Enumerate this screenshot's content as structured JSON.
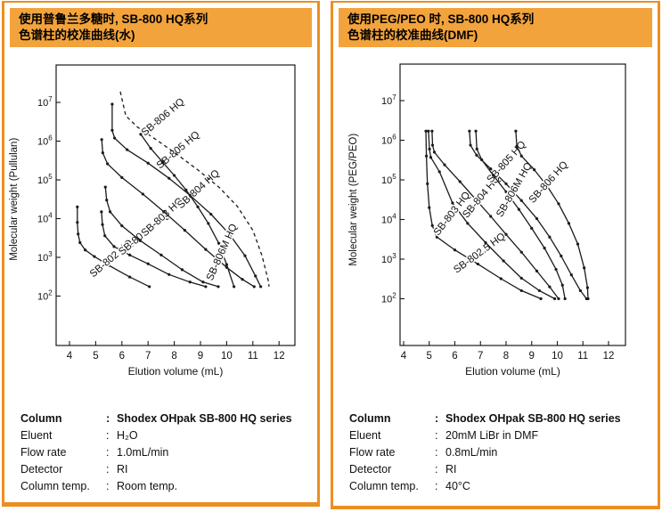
{
  "colors": {
    "panel_border": "#ED8E1F",
    "header_fill": "#F2A33C",
    "curve": "#1a1a1a",
    "text": "#000000"
  },
  "panels": [
    {
      "header": {
        "line1": "使用普鲁兰多糖时, SB-800 HQ系列",
        "line2": "色谱柱的校准曲线(水)"
      },
      "specs": [
        {
          "label": "Column",
          "value": "Shodex OHpak SB-800 HQ series",
          "bold": true
        },
        {
          "label": "Eluent",
          "value": "H₂O",
          "bold": false
        },
        {
          "label": "Flow rate",
          "value": "1.0mL/min",
          "bold": false
        },
        {
          "label": "Detector",
          "value": "RI",
          "bold": false
        },
        {
          "label": "Column temp.",
          "value": "Room temp.",
          "bold": false
        }
      ]
    },
    {
      "header": {
        "line1": "使用PEG/PEO 时, SB-800 HQ系列",
        "line2": "色谱柱的校准曲线(DMF)"
      },
      "specs": [
        {
          "label": "Column",
          "value": "Shodex OHpak SB-800 HQ series",
          "bold": true
        },
        {
          "label": "Eluent",
          "value": "20mM LiBr in DMF",
          "bold": false
        },
        {
          "label": "Flow rate",
          "value": "0.8mL/min",
          "bold": false
        },
        {
          "label": "Detector",
          "value": "RI",
          "bold": false
        },
        {
          "label": "Column temp.",
          "value": "40°C",
          "bold": false
        }
      ]
    }
  ],
  "chart_data": [
    {
      "type": "line",
      "title": "SB-800 HQ series calibration curves (water, Pullulan)",
      "xlabel": "Elution volume (mL)",
      "ylabel": "Molecular weight (Pullulan)",
      "x_ticks": [
        4,
        5,
        6,
        7,
        8,
        9,
        10,
        11,
        12
      ],
      "y_tick_exponents": [
        2,
        3,
        4,
        5,
        6,
        7
      ],
      "xlim": [
        3.49,
        12.6
      ],
      "ylim_log": [
        0.72,
        7.97
      ],
      "log_y": true,
      "grid": false,
      "legend_position": "inline-rotated-labels",
      "series": [
        {
          "name": "SB-802 HQ",
          "dashed": false,
          "markers": true,
          "points": [
            [
              4.3,
              20000
            ],
            [
              4.3,
              8000
            ],
            [
              4.33,
              4000
            ],
            [
              4.4,
              2400
            ],
            [
              4.6,
              1550
            ],
            [
              4.95,
              1050
            ],
            [
              5.5,
              620
            ],
            [
              6.3,
              310
            ],
            [
              7.05,
              175
            ]
          ],
          "label": {
            "text": "SB-802 HQ",
            "x": 5.67,
            "logy": 2.91,
            "rot": -40
          }
        },
        {
          "name": "SB-802.5 HQ",
          "dashed": false,
          "markers": true,
          "points": [
            [
              5.22,
              15000
            ],
            [
              5.26,
              7000
            ],
            [
              5.35,
              3600
            ],
            [
              5.7,
              1900
            ],
            [
              6.3,
              1150
            ],
            [
              7.0,
              680
            ],
            [
              7.8,
              360
            ],
            [
              8.6,
              230
            ],
            [
              9.2,
              175
            ]
          ],
          "label": {
            "text": "SB-802.5 HQ",
            "x": 6.9,
            "logy": 3.55,
            "rot": -40
          }
        },
        {
          "name": "SB-803 HQ",
          "dashed": false,
          "markers": true,
          "points": [
            [
              5.37,
              65000
            ],
            [
              5.42,
              30000
            ],
            [
              5.55,
              15000
            ],
            [
              6.0,
              6500
            ],
            [
              6.7,
              2700
            ],
            [
              7.5,
              1150
            ],
            [
              8.3,
              480
            ],
            [
              9.1,
              230
            ],
            [
              9.68,
              175
            ]
          ],
          "label": {
            "text": "SB-803 HQ",
            "x": 7.62,
            "logy": 3.98,
            "rot": -42
          }
        },
        {
          "name": "SB-804 HQ",
          "dashed": false,
          "markers": true,
          "points": [
            [
              5.23,
              1100000
            ],
            [
              5.27,
              500000
            ],
            [
              5.45,
              260000
            ],
            [
              6.0,
              115000
            ],
            [
              6.8,
              43000
            ],
            [
              7.6,
              15000
            ],
            [
              8.4,
              5000
            ],
            [
              9.2,
              1600
            ],
            [
              10.0,
              550
            ],
            [
              10.6,
              270
            ],
            [
              11.05,
              175
            ]
          ],
          "label": {
            "text": "SB-804 HQ",
            "x": 9.0,
            "logy": 4.7,
            "rot": -42
          }
        },
        {
          "name": "SB-805 HQ",
          "dashed": false,
          "markers": true,
          "points": [
            [
              5.63,
              9000000
            ],
            [
              5.63,
              1900000
            ],
            [
              5.72,
              1200000
            ],
            [
              6.2,
              600000
            ],
            [
              7.0,
              270000
            ],
            [
              7.8,
              110000
            ],
            [
              8.6,
              40000
            ],
            [
              9.4,
              13000
            ],
            [
              10.1,
              4000
            ],
            [
              10.7,
              1100
            ],
            [
              11.1,
              330
            ],
            [
              11.3,
              175
            ]
          ],
          "label": {
            "text": "SB-805 HQ",
            "x": 8.22,
            "logy": 5.71,
            "rot": -40
          }
        },
        {
          "name": "SB-806 HQ",
          "dashed": true,
          "markers": false,
          "points": [
            [
              5.94,
              19000000
            ],
            [
              6.15,
              4500000
            ],
            [
              6.6,
              2300000
            ],
            [
              7.3,
              1100000
            ],
            [
              8.1,
              460000
            ],
            [
              8.9,
              180000
            ],
            [
              9.7,
              65000
            ],
            [
              10.4,
              21000
            ],
            [
              11.0,
              5000
            ],
            [
              11.35,
              1100
            ],
            [
              11.58,
              260
            ],
            [
              11.62,
              175
            ]
          ],
          "label": {
            "text": "SB-806 HQ",
            "x": 7.64,
            "logy": 6.56,
            "rot": -40
          }
        },
        {
          "name": "SB-806M HQ",
          "dashed": false,
          "markers": true,
          "points": [
            [
              6.72,
              1500000
            ],
            [
              7.1,
              650000
            ],
            [
              7.55,
              290000
            ],
            [
              8.0,
              130000
            ],
            [
              8.45,
              55000
            ],
            [
              8.9,
              20000
            ],
            [
              9.3,
              7500
            ],
            [
              9.7,
              2300
            ],
            [
              10.0,
              650
            ],
            [
              10.28,
              175
            ]
          ],
          "label": {
            "text": "SB-806M HQ",
            "x": 9.92,
            "logy": 3.1,
            "rot": -66
          }
        }
      ]
    },
    {
      "type": "line",
      "title": "SB-800 HQ series calibration curves (DMF, PEG/PEO)",
      "xlabel": "Elution volume (mL)",
      "ylabel": "Molecular weight (PEG/PEO)",
      "x_ticks": [
        4,
        5,
        6,
        7,
        8,
        9,
        10,
        11,
        12
      ],
      "y_tick_exponents": [
        2,
        3,
        4,
        5,
        6,
        7
      ],
      "xlim": [
        3.85,
        12.66
      ],
      "ylim_log": [
        0.82,
        7.92
      ],
      "log_y": true,
      "grid": false,
      "legend_position": "inline-rotated-labels",
      "series": [
        {
          "name": "SB-802.5 HQ",
          "dashed": false,
          "markers": true,
          "points": [
            [
              4.87,
              1700000
            ],
            [
              4.89,
              400000
            ],
            [
              4.93,
              80000
            ],
            [
              5.0,
              20000
            ],
            [
              5.12,
              7000
            ],
            [
              5.3,
              3600
            ],
            [
              6.0,
              1700
            ],
            [
              6.9,
              750
            ],
            [
              7.8,
              320
            ],
            [
              8.6,
              160
            ],
            [
              9.36,
              100
            ]
          ],
          "label": {
            "text": "SB-802.5 HQ",
            "x": 7.03,
            "logy": 3.09,
            "rot": -36
          }
        },
        {
          "name": "SB-803 HQ",
          "dashed": false,
          "markers": true,
          "points": [
            [
              4.97,
              1700000
            ],
            [
              5.01,
              600000
            ],
            [
              5.06,
              370000
            ],
            [
              5.4,
              160000
            ],
            [
              5.91,
              26000
            ],
            [
              6.5,
              8000
            ],
            [
              7.2,
              2600
            ],
            [
              7.9,
              900
            ],
            [
              8.6,
              330
            ],
            [
              9.3,
              160
            ],
            [
              9.9,
              100
            ]
          ],
          "label": {
            "text": "SB-803 HQ",
            "x": 5.98,
            "logy": 4.1,
            "rot": -52
          }
        },
        {
          "name": "SB-804 HQ",
          "dashed": false,
          "markers": true,
          "points": [
            [
              5.11,
              1700000
            ],
            [
              5.13,
              750000
            ],
            [
              5.2,
              500000
            ],
            [
              5.6,
              240000
            ],
            [
              6.2,
              90000
            ],
            [
              6.8,
              33000
            ],
            [
              7.4,
              12000
            ],
            [
              8.0,
              4200
            ],
            [
              8.6,
              1500
            ],
            [
              9.2,
              500
            ],
            [
              9.7,
              200
            ],
            [
              10.05,
              100
            ]
          ],
          "label": {
            "text": "SB-804 HQ",
            "x": 7.13,
            "logy": 4.53,
            "rot": -50
          }
        },
        {
          "name": "SB-805 HQ",
          "dashed": false,
          "markers": true,
          "points": [
            [
              6.57,
              1700000
            ],
            [
              6.61,
              750000
            ],
            [
              6.85,
              420000
            ],
            [
              7.4,
              190000
            ],
            [
              8.0,
              80000
            ],
            [
              8.6,
              30000
            ],
            [
              9.2,
              10500
            ],
            [
              9.7,
              3600
            ],
            [
              10.15,
              1200
            ],
            [
              10.55,
              400
            ],
            [
              10.9,
              160
            ],
            [
              11.14,
              100
            ]
          ],
          "label": {
            "text": "SB-805 HQ",
            "x": 8.1,
            "logy": 5.4,
            "rot": -48
          }
        },
        {
          "name": "SB-806M HQ",
          "dashed": false,
          "markers": true,
          "points": [
            [
              6.82,
              1700000
            ],
            [
              6.86,
              600000
            ],
            [
              7.05,
              320000
            ],
            [
              7.5,
              130000
            ],
            [
              8.0,
              50000
            ],
            [
              8.5,
              18000
            ],
            [
              9.0,
              6000
            ],
            [
              9.5,
              1900
            ],
            [
              9.95,
              550
            ],
            [
              10.2,
              220
            ],
            [
              10.3,
              100
            ]
          ],
          "label": {
            "text": "SB-806M HQ",
            "x": 8.42,
            "logy": 4.71,
            "rot": -60
          }
        },
        {
          "name": "SB-806 HQ",
          "dashed": false,
          "markers": true,
          "points": [
            [
              8.38,
              1700000
            ],
            [
              8.42,
              700000
            ],
            [
              8.6,
              400000
            ],
            [
              9.1,
              180000
            ],
            [
              9.6,
              70000
            ],
            [
              10.05,
              25000
            ],
            [
              10.45,
              8000
            ],
            [
              10.8,
              2400
            ],
            [
              11.05,
              600
            ],
            [
              11.18,
              190
            ],
            [
              11.2,
              100
            ]
          ],
          "label": {
            "text": "SB-806 HQ",
            "x": 9.74,
            "logy": 4.89,
            "rot": -48
          }
        }
      ]
    }
  ]
}
